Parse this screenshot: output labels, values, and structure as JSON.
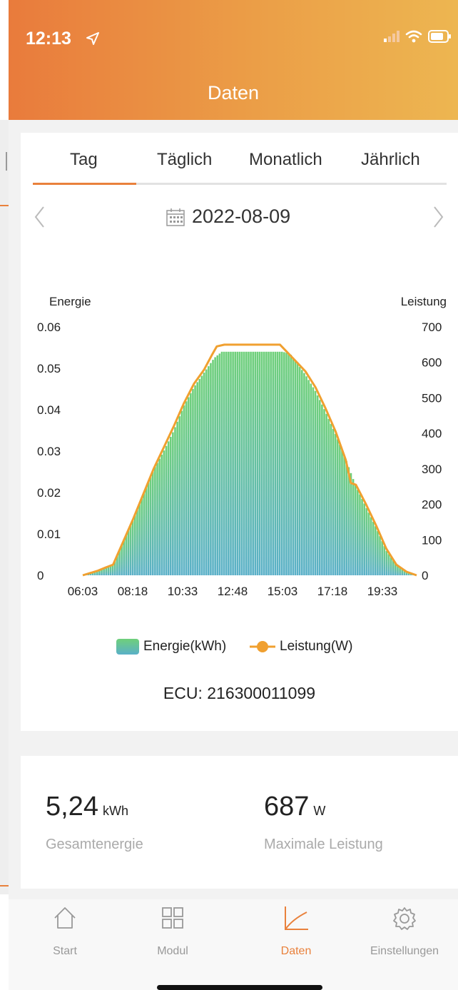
{
  "status_bar": {
    "time": "12:13"
  },
  "header": {
    "title": "Daten"
  },
  "tabs": [
    {
      "label": "Tag",
      "active": true
    },
    {
      "label": "Täglich",
      "active": false
    },
    {
      "label": "Monatlich",
      "active": false
    },
    {
      "label": "Jährlich",
      "active": false
    }
  ],
  "date": {
    "value": "2022-08-09"
  },
  "chart_data": {
    "type": "bar",
    "left_axis_label": "Energie",
    "right_axis_label": "Leistung",
    "left_ticks": [
      "0.06",
      "0.05",
      "0.04",
      "0.03",
      "0.02",
      "0.01",
      "0"
    ],
    "right_ticks": [
      "700",
      "600",
      "500",
      "400",
      "300",
      "200",
      "100",
      "0"
    ],
    "x_ticks": [
      "06:03",
      "08:18",
      "10:33",
      "12:48",
      "15:03",
      "17:18",
      "19:33"
    ],
    "ylim_left": [
      0,
      0.06
    ],
    "ylim_right": [
      0,
      700
    ],
    "series": [
      {
        "name": "Energie(kWh)",
        "kind": "bar",
        "color": "#6fd07a",
        "values_curve": [
          [
            0,
            0
          ],
          [
            30,
            0.001
          ],
          [
            45,
            0.002
          ],
          [
            60,
            0.0025
          ],
          [
            80,
            0.008
          ],
          [
            100,
            0.0135
          ],
          [
            120,
            0.0195
          ],
          [
            140,
            0.0255
          ],
          [
            160,
            0.03
          ],
          [
            180,
            0.035
          ],
          [
            200,
            0.041
          ],
          [
            220,
            0.0455
          ],
          [
            240,
            0.049
          ],
          [
            260,
            0.0525
          ],
          [
            275,
            0.054
          ],
          [
            395,
            0.054
          ],
          [
            410,
            0.0535
          ],
          [
            425,
            0.051
          ],
          [
            440,
            0.0485
          ],
          [
            460,
            0.0445
          ],
          [
            480,
            0.0395
          ],
          [
            500,
            0.034
          ],
          [
            520,
            0.028
          ],
          [
            540,
            0.0215
          ],
          [
            560,
            0.0165
          ],
          [
            580,
            0.0115
          ],
          [
            600,
            0.006
          ],
          [
            620,
            0.0025
          ],
          [
            640,
            0.0007
          ],
          [
            660,
            0
          ]
        ]
      },
      {
        "name": "Leistung(W)",
        "kind": "line",
        "color": "#f0a030",
        "values_curve": [
          [
            0,
            0
          ],
          [
            30,
            13
          ],
          [
            45,
            22
          ],
          [
            60,
            30
          ],
          [
            80,
            95
          ],
          [
            100,
            160
          ],
          [
            120,
            230
          ],
          [
            140,
            300
          ],
          [
            160,
            360
          ],
          [
            180,
            420
          ],
          [
            200,
            485
          ],
          [
            220,
            540
          ],
          [
            240,
            580
          ],
          [
            255,
            620
          ],
          [
            265,
            645
          ],
          [
            280,
            650
          ],
          [
            390,
            650
          ],
          [
            400,
            635
          ],
          [
            420,
            605
          ],
          [
            440,
            575
          ],
          [
            460,
            530
          ],
          [
            480,
            470
          ],
          [
            500,
            405
          ],
          [
            520,
            325
          ],
          [
            530,
            260
          ],
          [
            540,
            255
          ],
          [
            560,
            200
          ],
          [
            580,
            140
          ],
          [
            600,
            75
          ],
          [
            620,
            30
          ],
          [
            640,
            10
          ],
          [
            660,
            0
          ]
        ]
      }
    ]
  },
  "legend": {
    "energy_label": "Energie(kWh)",
    "power_label": "Leistung(W)"
  },
  "ecu": {
    "label": "ECU:",
    "id": "216300011099"
  },
  "stats": {
    "total_energy": {
      "value": "5,24",
      "unit": "kWh",
      "label": "Gesamtenergie"
    },
    "max_power": {
      "value": "687",
      "unit": "W",
      "label": "Maximale Leistung"
    }
  },
  "tabbar": [
    {
      "label": "Start",
      "icon": "home-icon",
      "active": false
    },
    {
      "label": "Modul",
      "icon": "grid-icon",
      "active": false
    },
    {
      "label": "Daten",
      "icon": "chart-icon",
      "active": true
    },
    {
      "label": "Einstellungen",
      "icon": "gear-icon",
      "active": false
    }
  ],
  "colors": {
    "accent": "#e9813c",
    "header_start": "#e97b3c",
    "header_end": "#edb651",
    "energy_top": "#6fd07a",
    "energy_bottom": "#5ab0c8",
    "power_line": "#f0a030"
  }
}
